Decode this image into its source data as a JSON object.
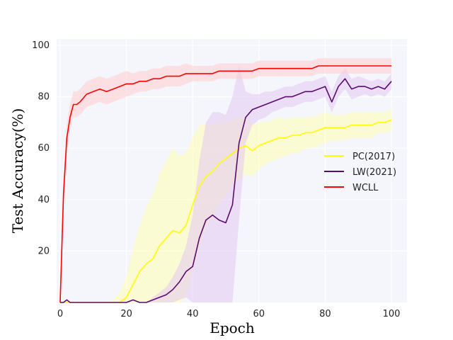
{
  "chart_data": {
    "type": "line",
    "title": "",
    "xlabel": "Epoch",
    "ylabel": "Test Accuracy(%)",
    "xlim": [
      0,
      100
    ],
    "ylim": [
      0,
      100
    ],
    "xticks": [
      0,
      20,
      40,
      60,
      80,
      100
    ],
    "yticks": [
      20,
      40,
      60,
      80,
      100
    ],
    "grid": true,
    "legend_position": "right",
    "background_color": "#f5f5fc",
    "series": [
      {
        "name": "PC(2017)",
        "color": "#ffff00",
        "band_color": "#ffffb0",
        "x": [
          0,
          5,
          10,
          15,
          18,
          20,
          22,
          24,
          26,
          28,
          30,
          32,
          34,
          36,
          38,
          40,
          42,
          44,
          46,
          48,
          50,
          52,
          54,
          56,
          58,
          60,
          62,
          64,
          66,
          68,
          70,
          72,
          74,
          76,
          78,
          80,
          82,
          84,
          86,
          88,
          90,
          92,
          94,
          96,
          98,
          100
        ],
        "y": [
          0,
          0,
          0,
          0,
          0,
          2,
          7,
          12,
          15,
          17,
          22,
          25,
          28,
          27,
          30,
          38,
          45,
          49,
          51,
          54,
          56,
          58,
          60,
          61,
          59,
          61,
          62,
          63,
          64,
          64,
          65,
          65,
          66,
          66,
          67,
          68,
          68,
          68,
          68,
          69,
          69,
          69,
          69,
          70,
          70,
          71
        ],
        "band": [
          0,
          0,
          0,
          0,
          4,
          8,
          14,
          18,
          22,
          25,
          28,
          30,
          32,
          30,
          28,
          26,
          24,
          20,
          18,
          16,
          14,
          13,
          12,
          11,
          10,
          9,
          8,
          8,
          8,
          7,
          7,
          7,
          6,
          6,
          6,
          6,
          5,
          5,
          5,
          5,
          5,
          5,
          5,
          4,
          4,
          4
        ]
      },
      {
        "name": "LW(2021)",
        "color": "#5a0b6e",
        "band_color": "#e4c9f2",
        "x": [
          0,
          1,
          2,
          3,
          5,
          10,
          15,
          20,
          22,
          24,
          26,
          28,
          30,
          32,
          34,
          36,
          38,
          40,
          42,
          44,
          46,
          48,
          50,
          52,
          54,
          56,
          58,
          60,
          62,
          64,
          66,
          68,
          70,
          72,
          74,
          76,
          78,
          80,
          82,
          84,
          86,
          88,
          90,
          92,
          94,
          96,
          98,
          100
        ],
        "y": [
          0,
          0,
          1,
          0,
          0,
          0,
          0,
          0,
          1,
          0,
          0,
          1,
          2,
          3,
          5,
          8,
          12,
          14,
          25,
          32,
          34,
          32,
          31,
          38,
          62,
          72,
          75,
          76,
          77,
          78,
          79,
          80,
          80,
          81,
          82,
          82,
          83,
          84,
          78,
          84,
          87,
          83,
          84,
          84,
          83,
          84,
          83,
          86
        ],
        "band": [
          0,
          0,
          0,
          0,
          0,
          0,
          0,
          0,
          0,
          0,
          0,
          1,
          2,
          3,
          5,
          7,
          10,
          20,
          30,
          38,
          40,
          42,
          42,
          42,
          30,
          10,
          6,
          5,
          5,
          4,
          4,
          4,
          4,
          4,
          4,
          4,
          4,
          4,
          4,
          4,
          4,
          4,
          4,
          3,
          3,
          3,
          3,
          3
        ]
      },
      {
        "name": "WCLL",
        "color": "#ff0000",
        "band_color": "#ffcccc",
        "x": [
          0,
          1,
          2,
          3,
          4,
          5,
          6,
          8,
          10,
          12,
          14,
          16,
          18,
          20,
          22,
          24,
          26,
          28,
          30,
          32,
          34,
          36,
          38,
          40,
          42,
          44,
          46,
          48,
          50,
          52,
          54,
          56,
          58,
          60,
          62,
          64,
          66,
          68,
          70,
          72,
          74,
          76,
          78,
          80,
          82,
          84,
          86,
          88,
          90,
          92,
          94,
          96,
          98,
          100
        ],
        "y": [
          0,
          42,
          64,
          72,
          77,
          77,
          78,
          81,
          82,
          83,
          82,
          83,
          84,
          85,
          85,
          86,
          86,
          87,
          87,
          88,
          88,
          88,
          89,
          89,
          89,
          89,
          89,
          90,
          90,
          90,
          90,
          90,
          90,
          91,
          91,
          91,
          91,
          91,
          91,
          91,
          91,
          91,
          92,
          92,
          92,
          92,
          92,
          92,
          92,
          92,
          92,
          92,
          92,
          92
        ],
        "band": [
          0,
          6,
          6,
          5,
          5,
          5,
          5,
          5,
          5,
          5,
          5,
          5,
          5,
          5,
          4,
          4,
          4,
          4,
          4,
          4,
          4,
          4,
          4,
          3,
          3,
          3,
          3,
          3,
          3,
          3,
          3,
          3,
          3,
          3,
          3,
          3,
          3,
          3,
          3,
          3,
          3,
          3,
          3,
          3,
          3,
          3,
          3,
          3,
          3,
          3,
          3,
          3,
          3,
          3
        ]
      }
    ]
  }
}
